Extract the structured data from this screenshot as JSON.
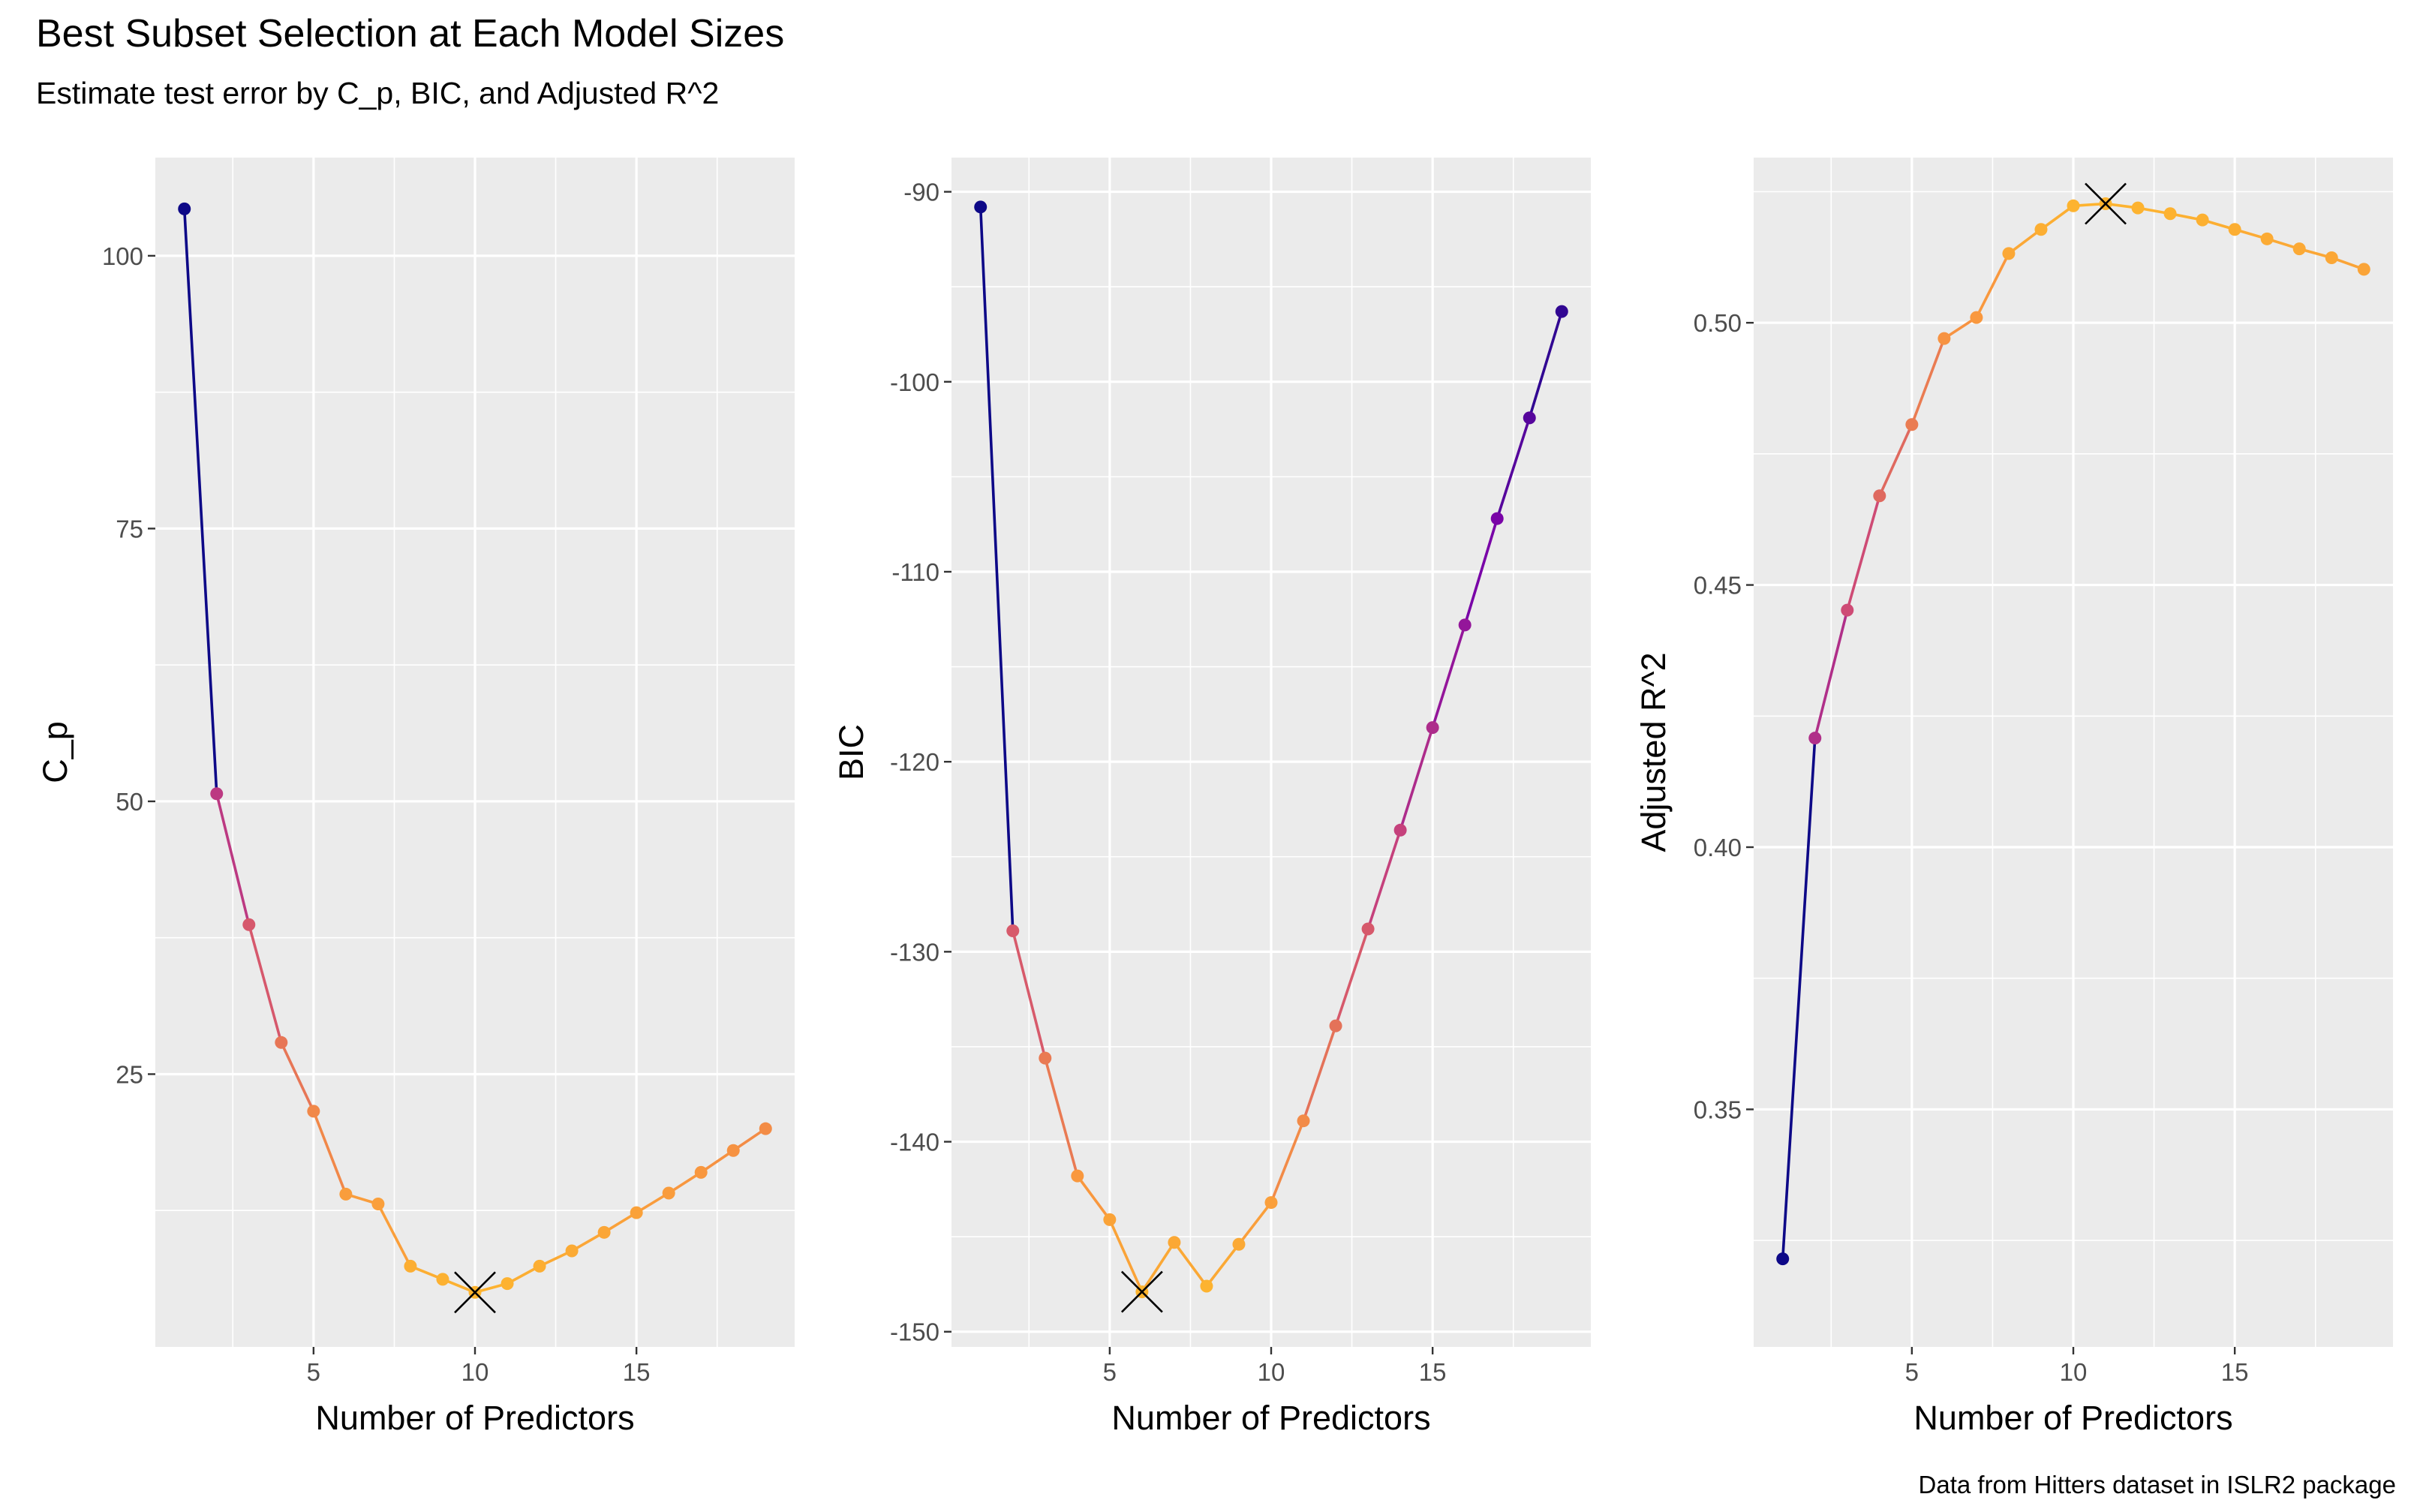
{
  "title": "Best Subset Selection at Each Model Sizes",
  "subtitle": "Estimate test error by C_p, BIC, and Adjusted R^2",
  "caption": "Data from Hitters dataset in ISLR2 package",
  "colors": {
    "panel_bg": "#ebebeb",
    "grid": "#ffffff",
    "low": "#0d0887",
    "mid_purple": "#7e03a8",
    "mid_magenta": "#cc4778",
    "mid_orange": "#f89540",
    "high": "#fdb42f",
    "marker": "#000000"
  },
  "chart_data": [
    {
      "type": "line",
      "xlabel": "Number of Predictors",
      "ylabel": "C_p",
      "xlim": [
        0.1,
        19.9
      ],
      "ylim": [
        0,
        109
      ],
      "xticks": [
        5,
        10,
        15
      ],
      "yticks": [
        25,
        50,
        75,
        100
      ],
      "x": [
        1,
        2,
        3,
        4,
        5,
        6,
        7,
        8,
        9,
        10,
        11,
        12,
        13,
        14,
        15,
        16,
        17,
        18,
        19
      ],
      "values": [
        104.3,
        50.7,
        38.7,
        27.9,
        21.6,
        14.0,
        13.1,
        7.4,
        6.2,
        5.0,
        5.8,
        7.4,
        8.8,
        10.5,
        12.3,
        14.1,
        16.0,
        18.0,
        20.0
      ],
      "best_x": 10,
      "best_rule": "min"
    },
    {
      "type": "line",
      "xlabel": "Number of Predictors",
      "ylabel": "BIC",
      "xlim": [
        0.1,
        19.9
      ],
      "ylim": [
        -150.8,
        -88.2
      ],
      "xticks": [
        5,
        10,
        15
      ],
      "yticks": [
        -90,
        -100,
        -110,
        -120,
        -130,
        -140,
        -150
      ],
      "x": [
        1,
        2,
        3,
        4,
        5,
        6,
        7,
        8,
        9,
        10,
        11,
        12,
        13,
        14,
        15,
        16,
        17,
        18,
        19
      ],
      "values": [
        -90.8,
        -128.9,
        -135.6,
        -141.8,
        -144.1,
        -147.9,
        -145.3,
        -147.6,
        -145.4,
        -143.2,
        -138.9,
        -133.9,
        -128.8,
        -123.6,
        -118.2,
        -112.8,
        -107.2,
        -101.9,
        -96.3
      ],
      "best_x": 6,
      "best_rule": "min"
    },
    {
      "type": "line",
      "xlabel": "Number of Predictors",
      "ylabel": "Adjusted R^2",
      "xlim": [
        0.1,
        19.9
      ],
      "ylim": [
        0.3047,
        0.5315
      ],
      "xticks": [
        5,
        10,
        15
      ],
      "yticks": [
        0.35,
        0.4,
        0.45,
        0.5
      ],
      "yticks_text": [
        "0.35",
        "0.40",
        "0.45",
        "0.50"
      ],
      "x": [
        1,
        2,
        3,
        4,
        5,
        6,
        7,
        8,
        9,
        10,
        11,
        12,
        13,
        14,
        15,
        16,
        17,
        18,
        19
      ],
      "values": [
        0.3215,
        0.4208,
        0.4452,
        0.467,
        0.4806,
        0.497,
        0.501,
        0.5132,
        0.5178,
        0.5223,
        0.5227,
        0.5219,
        0.5208,
        0.5196,
        0.5178,
        0.516,
        0.5141,
        0.5124,
        0.5102
      ],
      "best_x": 11,
      "best_rule": "max"
    }
  ]
}
